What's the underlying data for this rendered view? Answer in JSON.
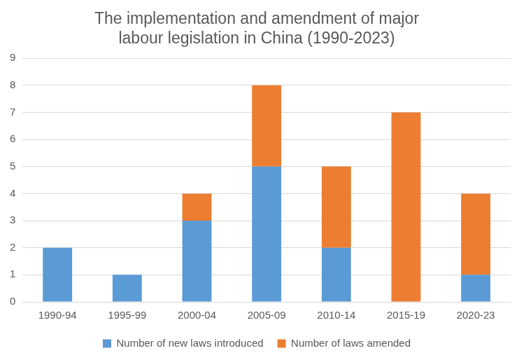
{
  "chart_data": {
    "type": "bar",
    "title": [
      "The implementation and amendment of major",
      "labour legislation in China (1990-2023)"
    ],
    "categories": [
      "1990-94",
      "1995-99",
      "2000-04",
      "2005-09",
      "2010-14",
      "2015-19",
      "2020-23"
    ],
    "series": [
      {
        "name": "Number of new laws introduced",
        "color": "#5B9BD5",
        "values": [
          2,
          1,
          3,
          5,
          2,
          0,
          1
        ]
      },
      {
        "name": "Number of laws amended",
        "color": "#ED7D31",
        "values": [
          0,
          0,
          1,
          3,
          3,
          7,
          3
        ]
      }
    ],
    "stacked": true,
    "ylim": [
      0,
      9
    ],
    "yticks": [
      0,
      1,
      2,
      3,
      4,
      5,
      6,
      7,
      8,
      9
    ],
    "grid": true,
    "legend": "bottom"
  }
}
